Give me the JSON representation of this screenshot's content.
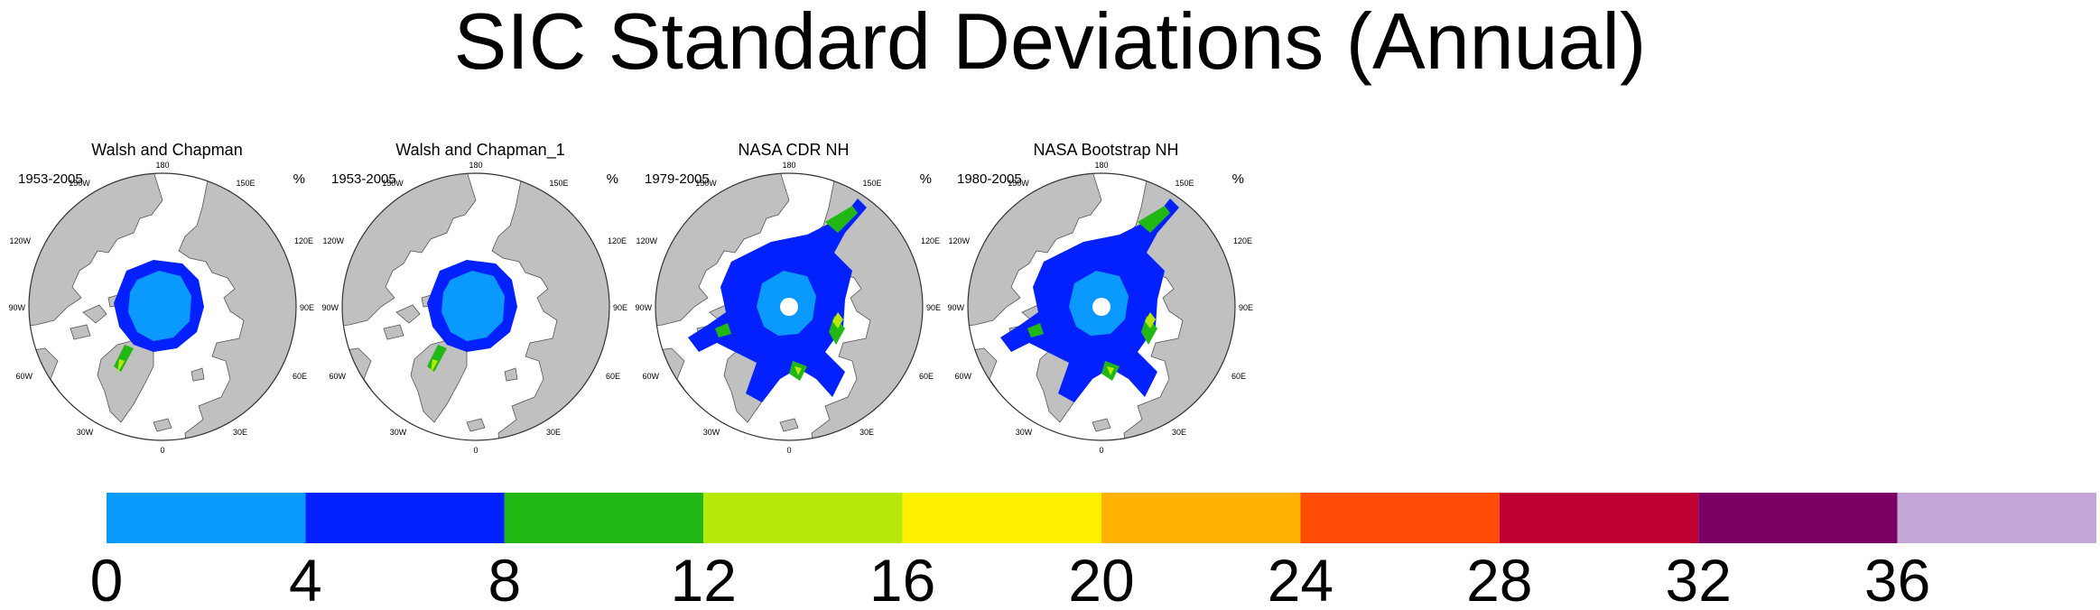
{
  "title": "SIC Standard Deviations (Annual)",
  "panels": [
    {
      "title": "Walsh and Chapman",
      "period": "1953-2005",
      "unit": "%",
      "ice_extent": "central",
      "pole_hole": false
    },
    {
      "title": "Walsh and Chapman_1",
      "period": "1953-2005",
      "unit": "%",
      "ice_extent": "central",
      "pole_hole": false
    },
    {
      "title": "NASA CDR NH",
      "period": "1979-2005",
      "unit": "%",
      "ice_extent": "wide",
      "pole_hole": true
    },
    {
      "title": "NASA Bootstrap NH",
      "period": "1980-2005",
      "unit": "%",
      "ice_extent": "wide",
      "pole_hole": true
    }
  ],
  "map_labels": {
    "top": "180",
    "bottom": "0",
    "left": [
      "150W",
      "120W",
      "90W",
      "60W",
      "30W"
    ],
    "right": [
      "150E",
      "120E",
      "90E",
      "60E",
      "30E"
    ]
  },
  "colorbar": {
    "ticks": [
      "0",
      "4",
      "8",
      "12",
      "16",
      "20",
      "24",
      "28",
      "32",
      "36"
    ],
    "colors": [
      "#0a99ff",
      "#0321ff",
      "#21b714",
      "#b7e80a",
      "#fff200",
      "#ffb300",
      "#ff4b03",
      "#be0032",
      "#7b0066",
      "#c5a6d8"
    ]
  },
  "chart_data": {
    "type": "heatmap",
    "title": "SIC Standard Deviations (Annual)",
    "unit": "%",
    "levels": [
      0,
      4,
      8,
      12,
      16,
      20,
      24,
      28,
      32,
      36
    ],
    "panels": [
      "Walsh and Chapman",
      "Walsh and Chapman_1",
      "NASA CDR NH",
      "NASA Bootstrap NH"
    ],
    "periods": [
      "1953-2005",
      "1953-2005",
      "1979-2005",
      "1980-2005"
    ]
  }
}
